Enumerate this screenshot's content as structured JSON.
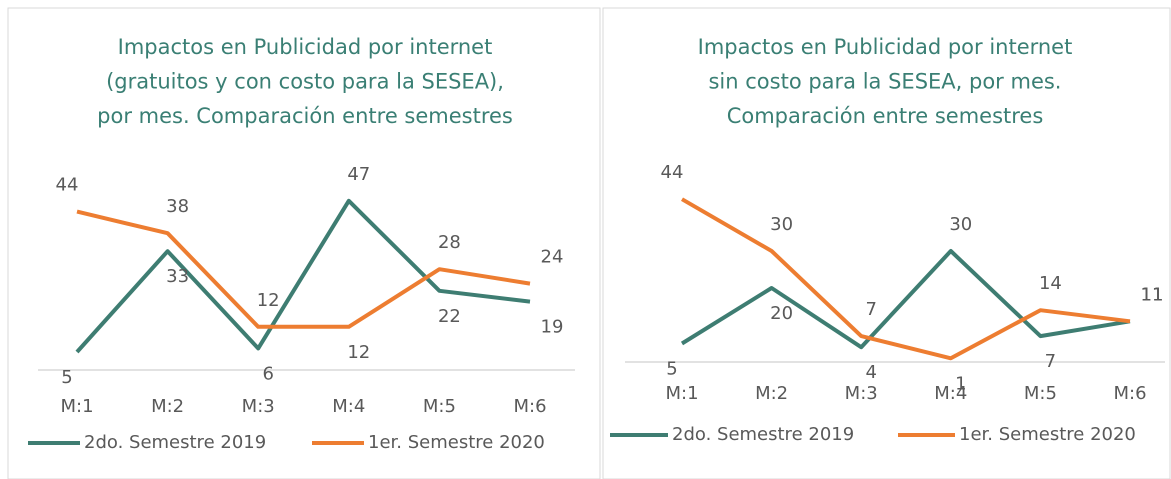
{
  "chart_data": [
    {
      "type": "line",
      "title": [
        "Impactos en Publicidad por internet",
        "(gratuitos y con costo para la SESEA),",
        "por mes. Comparación entre semestres"
      ],
      "categories": [
        "M:1",
        "M:2",
        "M:3",
        "M:4",
        "M:5",
        "M:6"
      ],
      "ylim": [
        0,
        50
      ],
      "series": [
        {
          "name": "2do. Semestre 2019",
          "color": "#3e7d72",
          "values": [
            5,
            33,
            6,
            47,
            22,
            19
          ]
        },
        {
          "name": "1er. Semestre 2020",
          "color": "#ed7d31",
          "values": [
            44,
            38,
            12,
            12,
            28,
            24
          ]
        }
      ]
    },
    {
      "type": "line",
      "title": [
        "Impactos en Publicidad por internet",
        "sin costo para la SESEA, por mes.",
        "Comparación entre semestres"
      ],
      "categories": [
        "M:1",
        "M:2",
        "M:3",
        "M:4",
        "M:5",
        "M:6"
      ],
      "ylim": [
        0,
        50
      ],
      "series": [
        {
          "name": "2do. Semestre 2019",
          "color": "#3e7d72",
          "values": [
            5,
            20,
            4,
            30,
            7,
            11
          ]
        },
        {
          "name": "1er. Semestre 2020",
          "color": "#ed7d31",
          "values": [
            44,
            30,
            7,
            1,
            14,
            11
          ]
        }
      ]
    }
  ]
}
